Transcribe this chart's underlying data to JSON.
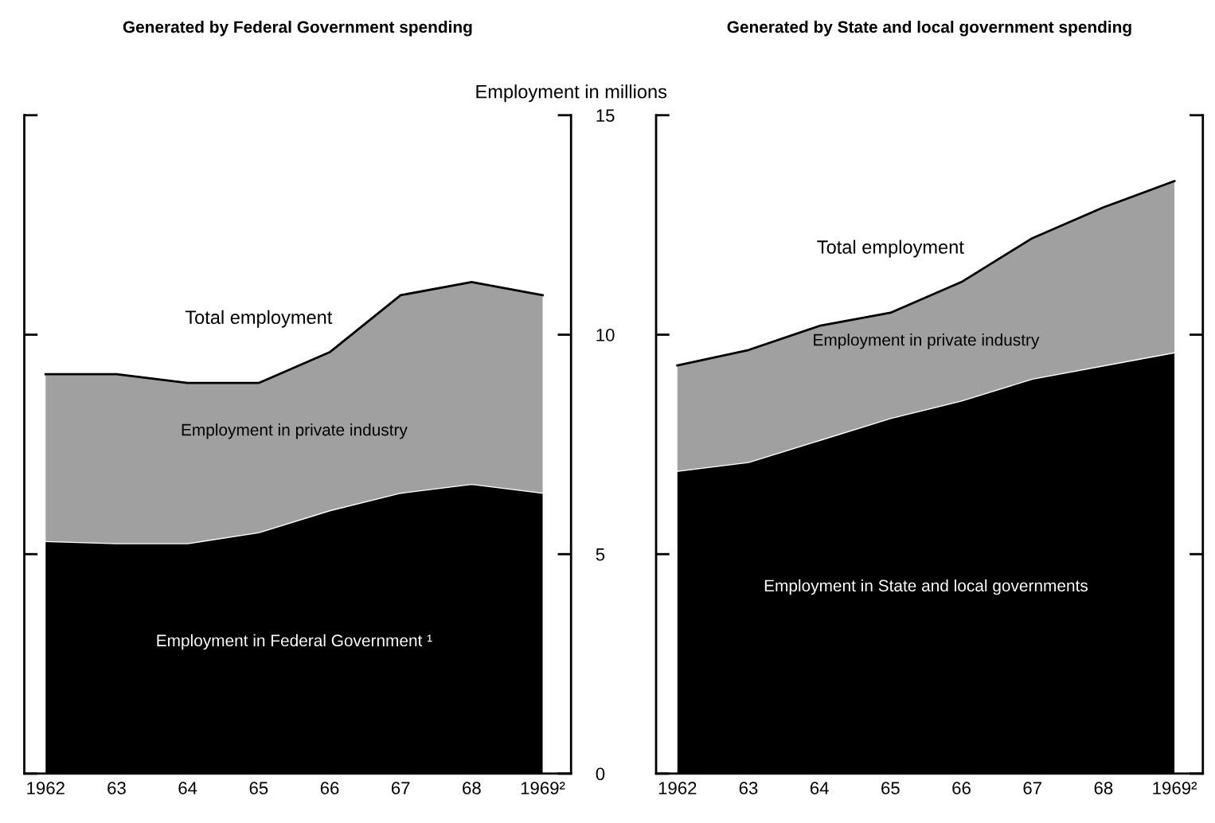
{
  "chart_data": [
    {
      "type": "area",
      "title": "Generated by Federal Government spending",
      "ylabel": "Employment in millions",
      "stacked": true,
      "categories": [
        "1962",
        "63",
        "64",
        "65",
        "66",
        "67",
        "68",
        "1969²"
      ],
      "series": [
        {
          "name": "Employment in Federal Government ¹",
          "color": "#000000",
          "values": [
            5.3,
            5.25,
            5.25,
            5.5,
            6.0,
            6.4,
            6.6,
            6.4
          ]
        },
        {
          "name": "Employment in private industry",
          "color": "#a0a0a0",
          "values": [
            3.8,
            3.85,
            3.65,
            3.4,
            3.6,
            4.5,
            4.6,
            4.5
          ]
        }
      ],
      "annotations": [
        {
          "text": "Total employment",
          "x": "65",
          "y": 8.9
        }
      ],
      "ylim": [
        0,
        15
      ],
      "yticks": [
        0,
        5,
        10,
        15
      ],
      "grid": false,
      "legend": false
    },
    {
      "type": "area",
      "title": "Generated by State and local government spending",
      "stacked": true,
      "tick_labels": "x",
      "categories": [
        "1962",
        "63",
        "64",
        "65",
        "66",
        "67",
        "68",
        "1969²"
      ],
      "series": [
        {
          "name": "Employment in State and local governments",
          "color": "#000000",
          "values": [
            6.9,
            7.1,
            7.6,
            8.1,
            8.5,
            9.0,
            9.3,
            9.6
          ]
        },
        {
          "name": "Employment in private industry",
          "color": "#a0a0a0",
          "values": [
            2.4,
            2.55,
            2.6,
            2.4,
            2.7,
            3.2,
            3.6,
            3.9
          ]
        }
      ],
      "annotations": [
        {
          "text": "Total employment",
          "x": "65",
          "y": 10.5
        }
      ],
      "ylim": [
        0,
        15
      ],
      "yticks": [
        0,
        5,
        10,
        15
      ],
      "grid": false,
      "legend": false
    }
  ]
}
